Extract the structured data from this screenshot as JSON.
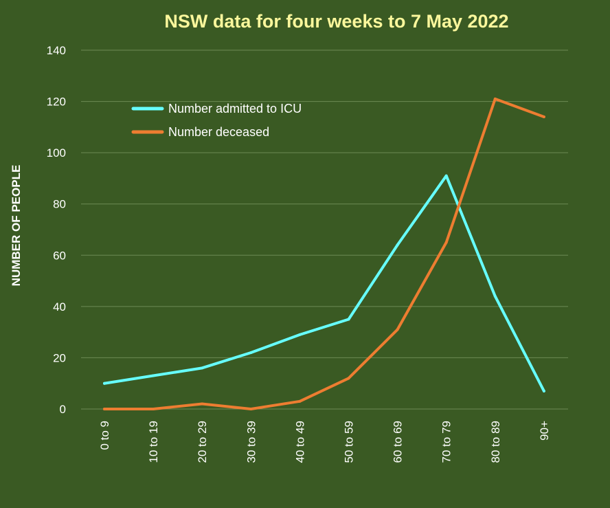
{
  "chart_data": {
    "type": "line",
    "title": "NSW data for four weeks to 7 May 2022",
    "xlabel": "",
    "ylabel": "NUMBER OF PEOPLE",
    "ylim": [
      0,
      140
    ],
    "yticks": [
      0,
      20,
      40,
      60,
      80,
      100,
      120,
      140
    ],
    "grid": true,
    "legend_position": "top-left",
    "categories": [
      "0 to 9",
      "10 to 19",
      "20 to 29",
      "30 to 39",
      "40 to 49",
      "50 to 59",
      "60 to 69",
      "70 to 79",
      "80 to 89",
      "90+"
    ],
    "series": [
      {
        "name": "Number admitted to ICU",
        "color": "#66ffff",
        "values": [
          10,
          13,
          16,
          22,
          29,
          35,
          64,
          91,
          44,
          7
        ]
      },
      {
        "name": "Number deceased",
        "color": "#ed7d31",
        "values": [
          0,
          0,
          2,
          0,
          3,
          12,
          31,
          65,
          121,
          114
        ]
      }
    ]
  }
}
